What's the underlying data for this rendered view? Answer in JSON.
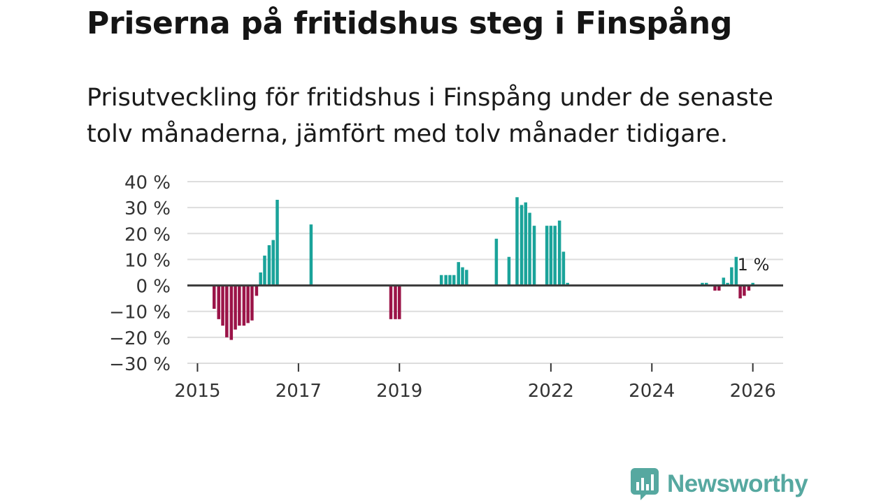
{
  "title": "Priserna på fritidshus steg i Finspång",
  "subtitle": "Prisutveckling för fritidshus i Finspång under de senaste tolv månaderna, jämfört med tolv månader tidigare.",
  "brand": {
    "name": "Newsworthy",
    "icon": "newsworthy-logo-icon",
    "color": "#56a8a0"
  },
  "chart_data": {
    "type": "bar",
    "y_axis": {
      "ticks": [
        40,
        30,
        20,
        10,
        0,
        -10,
        -20,
        -30
      ],
      "tick_labels": [
        "40 %",
        "30 %",
        "20 %",
        "10 %",
        "0 %",
        "−10 %",
        "−20 %",
        "−30 %"
      ],
      "ylim": [
        -30,
        40
      ]
    },
    "x_axis": {
      "ticks": [
        2015,
        2017,
        2019,
        2022,
        2024,
        2026
      ],
      "tick_labels": [
        "2015",
        "2017",
        "2019",
        "2022",
        "2024",
        "2026"
      ],
      "xlim": [
        2014.8,
        2026.6
      ]
    },
    "grid": true,
    "positive_color": "#1aa39a",
    "negative_color": "#9b1448",
    "annotation": {
      "text": "1 %",
      "x": 2026.0,
      "y": 1
    },
    "series": [
      {
        "name": "Prisutveckling",
        "x": [
          2015.33,
          2015.42,
          2015.5,
          2015.58,
          2015.67,
          2015.75,
          2015.83,
          2015.92,
          2016.0,
          2016.08,
          2016.17,
          2016.25,
          2016.33,
          2016.42,
          2016.5,
          2016.58,
          2016.67,
          2017.25,
          2018.83,
          2018.92,
          2019.0,
          2019.83,
          2019.92,
          2020.0,
          2020.08,
          2020.17,
          2020.25,
          2020.33,
          2020.42,
          2020.92,
          2021.17,
          2021.33,
          2021.42,
          2021.5,
          2021.58,
          2021.67,
          2021.92,
          2022.0,
          2022.08,
          2022.17,
          2022.25,
          2022.33,
          2025.0,
          2025.08,
          2025.25,
          2025.33,
          2025.42,
          2025.5,
          2025.58,
          2025.67,
          2025.75,
          2025.83,
          2025.92,
          2026.0
        ],
        "values": [
          -9,
          -13,
          -15.5,
          -20,
          -21,
          -17,
          -15.5,
          -15.5,
          -14.5,
          -13.5,
          -4,
          5,
          11.5,
          15.5,
          17.5,
          33,
          0,
          23.5,
          -13,
          -13,
          -13,
          4,
          4,
          4,
          4,
          9,
          7,
          6,
          0,
          18,
          11,
          34,
          31,
          32,
          28,
          23,
          23,
          23,
          23,
          25,
          13,
          1,
          1,
          1,
          -2,
          -2,
          3,
          1,
          7,
          11,
          -5,
          -4,
          -2,
          1
        ]
      }
    ]
  }
}
